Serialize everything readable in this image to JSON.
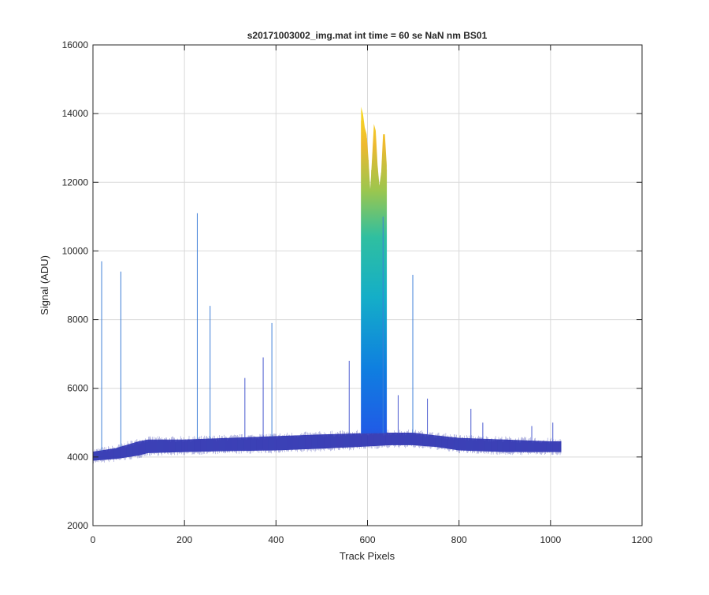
{
  "chart_data": {
    "type": "line",
    "title": "s20171003002_img.mat int time = 60 se  NaN nm BS01",
    "xlabel": "Track Pixels",
    "ylabel": "Signal (ADU)",
    "xlim": [
      0,
      1200
    ],
    "ylim": [
      2000,
      16000
    ],
    "xticks": [
      0,
      200,
      400,
      600,
      800,
      1000,
      1200
    ],
    "yticks": [
      2000,
      4000,
      6000,
      8000,
      10000,
      12000,
      14000,
      16000
    ],
    "xtick_labels": [
      "0",
      "200",
      "400",
      "600",
      "800",
      "1000",
      "1200"
    ],
    "ytick_labels": [
      "2000",
      "4000",
      "6000",
      "8000",
      "10000",
      "12000",
      "14000",
      "16000"
    ],
    "grid": true,
    "colormap": "parula",
    "colors": {
      "low": "#3a3fb8",
      "mid_low": "#0f72e0",
      "mid": "#14aec8",
      "mid_high": "#6ec86a",
      "high": "#f9d01f",
      "grid": "#d9d9d9",
      "axis": "#262626"
    },
    "baseline": {
      "x": [
        1,
        50,
        100,
        120,
        200,
        300,
        400,
        500,
        580,
        650,
        700,
        750,
        800,
        900,
        1000,
        1023
      ],
      "min": [
        3900,
        3950,
        4050,
        4120,
        4150,
        4180,
        4200,
        4250,
        4300,
        4350,
        4350,
        4300,
        4200,
        4150,
        4150,
        4150
      ],
      "max": [
        4150,
        4250,
        4450,
        4500,
        4500,
        4550,
        4600,
        4650,
        4680,
        4700,
        4700,
        4620,
        4550,
        4500,
        4450,
        4450
      ]
    },
    "peak": {
      "x": [
        586,
        590,
        594,
        598,
        602,
        606,
        610,
        614,
        618,
        622,
        626,
        630,
        634,
        638,
        642
      ],
      "y": [
        14200,
        14000,
        13600,
        13400,
        12700,
        11800,
        12700,
        13700,
        13500,
        12500,
        11900,
        12300,
        13400,
        13400,
        12500
      ]
    },
    "spikes": [
      {
        "x": 19,
        "y": 9700
      },
      {
        "x": 61,
        "y": 9400
      },
      {
        "x": 228,
        "y": 11100
      },
      {
        "x": 256,
        "y": 8400
      },
      {
        "x": 332,
        "y": 6300
      },
      {
        "x": 372,
        "y": 6900
      },
      {
        "x": 391,
        "y": 7900
      },
      {
        "x": 560,
        "y": 6800
      },
      {
        "x": 634,
        "y": 11000
      },
      {
        "x": 667,
        "y": 5800
      },
      {
        "x": 699,
        "y": 9300
      },
      {
        "x": 731,
        "y": 5700
      },
      {
        "x": 826,
        "y": 5400
      },
      {
        "x": 852,
        "y": 5000
      },
      {
        "x": 959,
        "y": 4900
      },
      {
        "x": 1005,
        "y": 5000
      }
    ]
  }
}
